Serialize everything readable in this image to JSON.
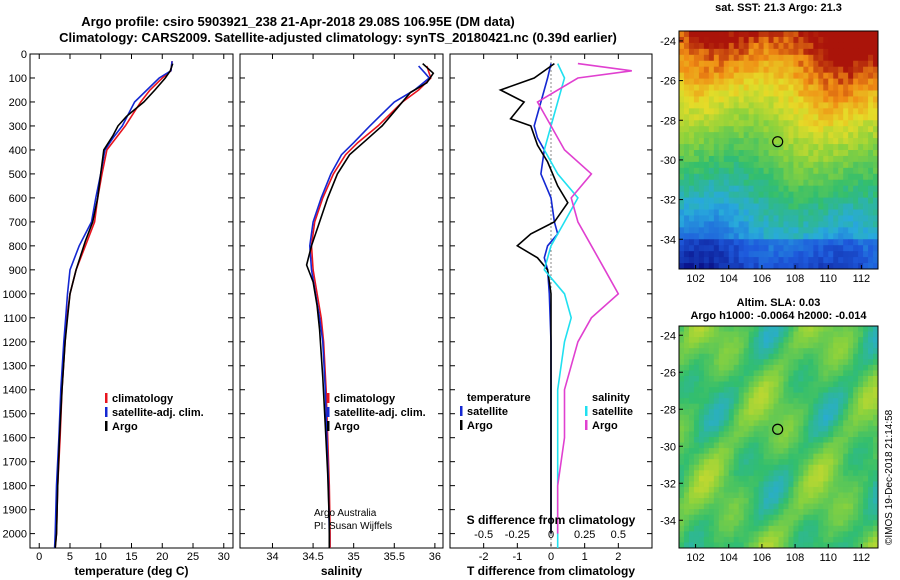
{
  "title": {
    "line1": "Argo profile: csiro 5903921_238 21-Apr-2018 29.08S 106.95E (DM data)",
    "line2": "Climatology: CARS2009. Satellite-adjusted climatology: synTS_20180421.nc (0.39d earlier)"
  },
  "colors": {
    "climatology": "#e8141e",
    "satellite": "#1428d2",
    "argo": "#000000",
    "satellite_salinity": "#20e0f0",
    "argo_salinity": "#e040d0"
  },
  "chart_data": [
    {
      "type": "line",
      "xlabel": "temperature (deg C)",
      "ylim": [
        2060,
        0
      ],
      "xlim": [
        -1.5,
        31.5
      ],
      "xticks": [
        "0",
        "5",
        "10",
        "15",
        "20",
        "25",
        "30"
      ],
      "yticks": [
        "0",
        "100",
        "200",
        "300",
        "400",
        "500",
        "600",
        "700",
        "800",
        "900",
        "1000",
        "1100",
        "1200",
        "1300",
        "1400",
        "1500",
        "1600",
        "1700",
        "1800",
        "1900",
        "2000"
      ],
      "legend": [
        "climatology",
        "satellite-adj. clim.",
        "Argo"
      ],
      "series": [
        {
          "name": "climatology",
          "x": [
            21.6,
            21.4,
            20.0,
            18.0,
            16.5,
            14.0,
            12.5,
            11.0,
            10.2,
            9.5,
            9.0,
            7.5,
            6.0,
            5.0,
            4.5,
            4.2,
            3.7,
            3.4,
            3.0,
            2.8,
            2.6
          ],
          "y": [
            30,
            70,
            100,
            150,
            200,
            300,
            350,
            400,
            500,
            600,
            700,
            800,
            900,
            1000,
            1100,
            1200,
            1400,
            1600,
            1800,
            2000,
            2060
          ]
        },
        {
          "name": "satellite-adj. clim.",
          "x": [
            21.6,
            21.4,
            19.5,
            17.5,
            15.5,
            13.5,
            12.0,
            10.7,
            10.0,
            9.2,
            8.5,
            6.5,
            5.0,
            4.6,
            4.3,
            4.0,
            3.5,
            3.2,
            2.8,
            2.6,
            2.5
          ],
          "y": [
            30,
            70,
            100,
            150,
            200,
            300,
            350,
            400,
            500,
            600,
            700,
            800,
            900,
            1000,
            1100,
            1200,
            1400,
            1600,
            1800,
            2000,
            2060
          ]
        },
        {
          "name": "Argo",
          "x": [
            21.7,
            21.3,
            20.5,
            18.8,
            17.0,
            14.2,
            12.8,
            12.0,
            10.5,
            10.0,
            9.5,
            8.7,
            7.5,
            6.0,
            5.0,
            4.6,
            4.2,
            3.7,
            3.3,
            3.0,
            2.8,
            2.6
          ],
          "y": [
            40,
            70,
            100,
            150,
            200,
            260,
            300,
            340,
            400,
            500,
            600,
            700,
            780,
            900,
            1000,
            1100,
            1200,
            1400,
            1600,
            1800,
            2000,
            2060
          ]
        }
      ]
    },
    {
      "type": "line",
      "xlabel": "salinity",
      "ylim": [
        2060,
        0
      ],
      "xlim": [
        33.6,
        36.1
      ],
      "xticks": [
        "34",
        "34.5",
        "35",
        "35.5",
        "36"
      ],
      "legend": [
        "climatology",
        "satellite-adj. clim.",
        "Argo"
      ],
      "notes": [
        "Argo Australia",
        "PI: Susan Wijffels"
      ],
      "series": [
        {
          "name": "climatology",
          "x": [
            35.9,
            35.93,
            35.95,
            35.8,
            35.6,
            35.3,
            35.05,
            34.9,
            34.75,
            34.62,
            34.52,
            34.48,
            34.5,
            34.55,
            34.6,
            34.63,
            34.66,
            34.68,
            34.7,
            34.71,
            34.71
          ],
          "y": [
            50,
            80,
            100,
            150,
            200,
            300,
            370,
            420,
            500,
            600,
            700,
            800,
            900,
            1000,
            1100,
            1200,
            1400,
            1600,
            1800,
            2000,
            2060
          ]
        },
        {
          "name": "satellite-adj. clim.",
          "x": [
            35.8,
            35.88,
            35.93,
            35.75,
            35.5,
            35.2,
            35.0,
            34.85,
            34.72,
            34.6,
            34.5,
            34.46,
            34.48,
            34.53,
            34.58,
            34.62,
            34.65,
            34.67,
            34.69,
            34.7,
            34.7
          ],
          "y": [
            50,
            80,
            100,
            150,
            200,
            300,
            370,
            420,
            500,
            600,
            700,
            800,
            900,
            1000,
            1100,
            1200,
            1400,
            1600,
            1800,
            2000,
            2060
          ]
        },
        {
          "name": "Argo",
          "x": [
            35.85,
            35.98,
            35.9,
            35.7,
            35.55,
            35.35,
            35.15,
            34.95,
            34.8,
            34.68,
            34.58,
            34.48,
            34.42,
            34.5,
            34.55,
            34.58,
            34.62,
            34.65,
            34.68,
            34.7,
            34.7
          ],
          "y": [
            40,
            80,
            120,
            160,
            220,
            300,
            360,
            420,
            500,
            600,
            700,
            800,
            880,
            950,
            1050,
            1150,
            1350,
            1550,
            1750,
            1950,
            2060
          ]
        }
      ]
    },
    {
      "type": "line",
      "xlabel": "T difference from climatology",
      "x2label": "S difference from climatology",
      "ylim": [
        2060,
        0
      ],
      "xlim": [
        -3,
        3
      ],
      "xticks": [
        "-2",
        "-1",
        "0",
        "1",
        "2"
      ],
      "x2ticks": [
        "-0.5",
        "-0.25",
        "0",
        "0.25",
        "0.5"
      ],
      "legend_temperature": [
        "temperature",
        "satellite",
        "Argo"
      ],
      "legend_salinity": [
        "salinity",
        "satellite",
        "Argo"
      ],
      "series": [
        {
          "name": "T satellite",
          "x": [
            0,
            -0.1,
            -0.3,
            -0.5,
            -0.4,
            -0.2,
            -0.3,
            0.0,
            0.1,
            0.2,
            -0.1,
            -0.2,
            -0.1,
            -0.05,
            0,
            0,
            0,
            0
          ],
          "y": [
            40,
            100,
            200,
            300,
            350,
            400,
            500,
            600,
            700,
            750,
            800,
            850,
            900,
            1000,
            1200,
            1500,
            1800,
            2000
          ]
        },
        {
          "name": "T Argo",
          "x": [
            0.1,
            -0.5,
            -1.5,
            -0.8,
            -1.2,
            -0.6,
            -0.4,
            -0.1,
            0.2,
            0.5,
            0.1,
            -0.6,
            -1.0,
            -0.4,
            -0.1,
            0,
            0,
            0
          ],
          "y": [
            40,
            100,
            150,
            200,
            270,
            300,
            380,
            450,
            550,
            620,
            700,
            750,
            800,
            850,
            900,
            1000,
            1500,
            2000
          ]
        },
        {
          "name": "S satellite",
          "x": [
            0.05,
            0.1,
            0.05,
            0.0,
            -0.05,
            0.05,
            0.2,
            0.1,
            0.0,
            -0.05,
            0.1,
            0.15,
            0.1,
            0.05,
            0.05,
            0.05,
            0.05,
            0.05
          ],
          "y": [
            40,
            100,
            200,
            300,
            400,
            500,
            600,
            700,
            800,
            900,
            1000,
            1100,
            1200,
            1400,
            1600,
            1800,
            2000,
            2060
          ]
        },
        {
          "name": "S Argo",
          "x": [
            0.2,
            0.6,
            0.2,
            -0.1,
            0.0,
            0.1,
            0.3,
            0.15,
            0.2,
            0.3,
            0.4,
            0.5,
            0.3,
            0.2,
            0.1,
            0.1,
            0.05,
            0.05
          ],
          "y": [
            40,
            70,
            100,
            200,
            300,
            400,
            500,
            600,
            700,
            800,
            900,
            1000,
            1100,
            1200,
            1400,
            1600,
            1800,
            2000
          ]
        }
      ]
    },
    {
      "type": "heatmap",
      "title": "sat. SST: 21.3 Argo: 21.3",
      "xlim": [
        101,
        113
      ],
      "ylim": [
        -35.5,
        -23.5
      ],
      "xticks": [
        "102",
        "104",
        "106",
        "108",
        "110",
        "112"
      ],
      "yticks": [
        "-24",
        "-26",
        "-28",
        "-30",
        "-32",
        "-34"
      ],
      "marker": {
        "lon": 106.95,
        "lat": -29.08
      }
    },
    {
      "type": "heatmap",
      "title": "Altim. SLA: 0.03",
      "subtitle": "Argo h1000: -0.0064 h2000: -0.014",
      "xlim": [
        101,
        113
      ],
      "ylim": [
        -35.5,
        -23.5
      ],
      "xticks": [
        "102",
        "104",
        "106",
        "108",
        "110",
        "112"
      ],
      "yticks": [
        "-24",
        "-26",
        "-28",
        "-30",
        "-32",
        "-34"
      ],
      "marker": {
        "lon": 106.95,
        "lat": -29.08
      }
    }
  ],
  "footer": "©IMOS 19-Dec-2018 21:14:58"
}
